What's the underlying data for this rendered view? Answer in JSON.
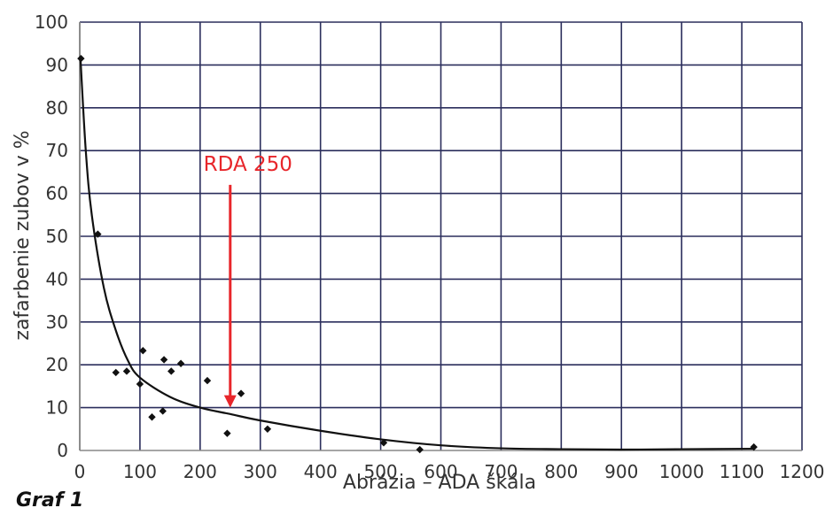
{
  "caption": "Graf 1",
  "chart_data": {
    "type": "scatter",
    "title": "",
    "xlabel": "Abrázia – ADA škála",
    "ylabel": "zafarbenie zubov v %",
    "xlim": [
      0,
      1200
    ],
    "ylim": [
      0,
      100
    ],
    "x_ticks": [
      "0",
      "100",
      "200",
      "300",
      "400",
      "500",
      "600",
      "700",
      "800",
      "900",
      "1000",
      "1100",
      "1200"
    ],
    "y_ticks": [
      "0",
      "10",
      "20",
      "30",
      "40",
      "50",
      "60",
      "70",
      "80",
      "90",
      "100"
    ],
    "grid": true,
    "legend": "none",
    "series": [
      {
        "points": [
          {
            "x": 2,
            "y": 91.5
          },
          {
            "x": 30,
            "y": 50.5
          },
          {
            "x": 60,
            "y": 18.2
          },
          {
            "x": 78,
            "y": 18.5
          },
          {
            "x": 100,
            "y": 15.5
          },
          {
            "x": 105,
            "y": 23.3
          },
          {
            "x": 120,
            "y": 7.8
          },
          {
            "x": 138,
            "y": 9.2
          },
          {
            "x": 140,
            "y": 21.2
          },
          {
            "x": 152,
            "y": 18.5
          },
          {
            "x": 168,
            "y": 20.3
          },
          {
            "x": 212,
            "y": 16.3
          },
          {
            "x": 245,
            "y": 4.0
          },
          {
            "x": 268,
            "y": 13.3
          },
          {
            "x": 312,
            "y": 5.0
          },
          {
            "x": 505,
            "y": 1.8
          },
          {
            "x": 565,
            "y": 0.2
          },
          {
            "x": 1120,
            "y": 0.8
          }
        ]
      }
    ],
    "trendline": {
      "type": "power-fit",
      "points": [
        {
          "x": 1,
          "y": 92
        },
        {
          "x": 10,
          "y": 70
        },
        {
          "x": 20,
          "y": 55
        },
        {
          "x": 40,
          "y": 38
        },
        {
          "x": 60,
          "y": 28
        },
        {
          "x": 80,
          "y": 21
        },
        {
          "x": 100,
          "y": 17
        },
        {
          "x": 150,
          "y": 12.5
        },
        {
          "x": 200,
          "y": 10
        },
        {
          "x": 250,
          "y": 8.5
        },
        {
          "x": 300,
          "y": 7
        },
        {
          "x": 400,
          "y": 4.6
        },
        {
          "x": 500,
          "y": 2.6
        },
        {
          "x": 600,
          "y": 1.2
        },
        {
          "x": 700,
          "y": 0.5
        },
        {
          "x": 800,
          "y": 0.3
        },
        {
          "x": 900,
          "y": 0.2
        },
        {
          "x": 1000,
          "y": 0.3
        },
        {
          "x": 1120,
          "y": 0.4
        }
      ]
    },
    "annotation": {
      "text": "RDA 250",
      "arrow_x": 250,
      "arrow_from_y": 62,
      "arrow_to_y": 10,
      "color": "#e8262b"
    },
    "colors": {
      "grid": "#2b2e5c",
      "points": "#111111",
      "curve": "#111111",
      "axis": "#888888"
    }
  }
}
